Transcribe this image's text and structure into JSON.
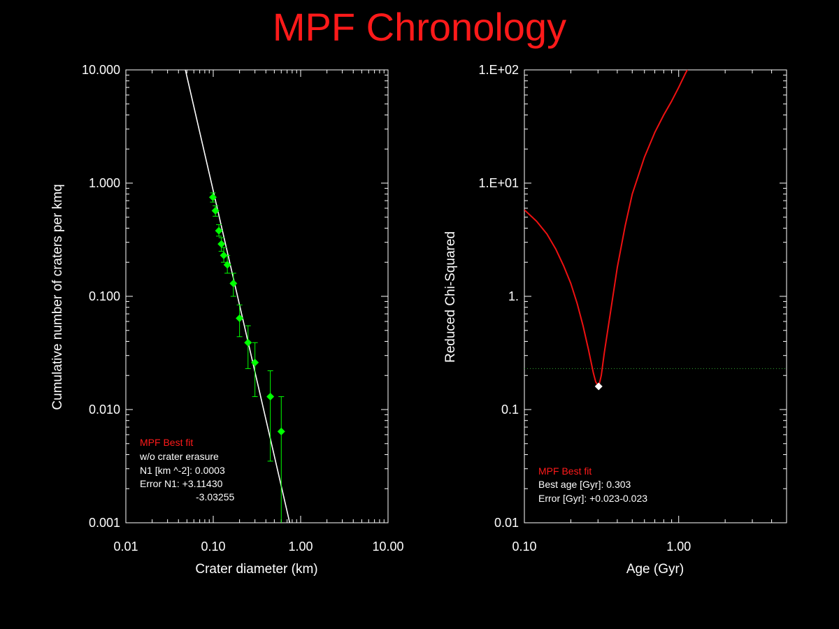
{
  "title": "MPF Chronology",
  "colors": {
    "background": "#000000",
    "title": "#ff1a1a",
    "axis": "#ffffff",
    "fit_line": "#ffffff",
    "data_points": "#00ff00",
    "chi_curve": "#ee1111",
    "threshold": "#33aa33",
    "min_marker": "#ffffff"
  },
  "chart_data": [
    {
      "type": "scatter",
      "xlabel": "Crater diameter (km)",
      "ylabel": "Cumulative number of craters per kmq",
      "xscale": "log",
      "yscale": "log",
      "xlim": [
        0.01,
        10.0
      ],
      "ylim": [
        0.001,
        10.0
      ],
      "xticks": [
        {
          "value": 0.01,
          "label": "0.01"
        },
        {
          "value": 0.1,
          "label": "0.10"
        },
        {
          "value": 1.0,
          "label": "1.00"
        },
        {
          "value": 10.0,
          "label": "10.00"
        }
      ],
      "yticks": [
        {
          "value": 0.001,
          "label": "0.001"
        },
        {
          "value": 0.01,
          "label": "0.010"
        },
        {
          "value": 0.1,
          "label": "0.100"
        },
        {
          "value": 1.0,
          "label": "1.000"
        },
        {
          "value": 10.0,
          "label": "10.000"
        }
      ],
      "fit_line": {
        "x": [
          0.046,
          0.75
        ],
        "y": [
          10.0,
          0.001
        ]
      },
      "points": [
        {
          "x": 0.099,
          "y": 0.75,
          "err_lo": 0.68,
          "err_hi": 0.82
        },
        {
          "x": 0.106,
          "y": 0.57,
          "err_lo": 0.51,
          "err_hi": 0.63
        },
        {
          "x": 0.116,
          "y": 0.38,
          "err_lo": 0.34,
          "err_hi": 0.43
        },
        {
          "x": 0.124,
          "y": 0.29,
          "err_lo": 0.25,
          "err_hi": 0.33
        },
        {
          "x": 0.132,
          "y": 0.23,
          "err_lo": 0.2,
          "err_hi": 0.27
        },
        {
          "x": 0.145,
          "y": 0.19,
          "err_lo": 0.16,
          "err_hi": 0.23
        },
        {
          "x": 0.17,
          "y": 0.13,
          "err_lo": 0.1,
          "err_hi": 0.16
        },
        {
          "x": 0.2,
          "y": 0.064,
          "err_lo": 0.044,
          "err_hi": 0.084
        },
        {
          "x": 0.25,
          "y": 0.039,
          "err_lo": 0.023,
          "err_hi": 0.055
        },
        {
          "x": 0.3,
          "y": 0.026,
          "err_lo": 0.013,
          "err_hi": 0.039
        },
        {
          "x": 0.45,
          "y": 0.013,
          "err_lo": 0.0035,
          "err_hi": 0.022
        },
        {
          "x": 0.6,
          "y": 0.0064,
          "err_lo": 0.0008,
          "err_hi": 0.013
        }
      ],
      "annotation": {
        "title": "MPF Best fit",
        "lines": [
          "w/o crater erasure",
          "N1 [km ^-2]: 0.0003",
          "Error N1: +3.11430",
          "-3.03255"
        ]
      }
    },
    {
      "type": "line",
      "xlabel": "Age (Gyr)",
      "ylabel": "Reduced Chi-Squared",
      "xscale": "log",
      "yscale": "log",
      "xlim": [
        0.1,
        5.0
      ],
      "ylim": [
        0.01,
        100.0
      ],
      "xticks": [
        {
          "value": 0.1,
          "label": "0.10"
        },
        {
          "value": 1.0,
          "label": "1.00"
        }
      ],
      "yticks": [
        {
          "value": 0.01,
          "label": "0.01"
        },
        {
          "value": 0.1,
          "label": "0.1"
        },
        {
          "value": 1.0,
          "label": "1."
        },
        {
          "value": 10.0,
          "label": "1.E+01"
        },
        {
          "value": 100.0,
          "label": "1.E+02"
        }
      ],
      "series": [
        {
          "x": [
            0.1,
            0.12,
            0.14,
            0.16,
            0.18,
            0.2,
            0.22,
            0.24,
            0.26,
            0.28,
            0.29,
            0.303,
            0.315,
            0.33,
            0.36,
            0.4,
            0.45,
            0.5,
            0.6,
            0.7,
            0.8,
            0.9,
            1.0,
            1.1,
            1.2
          ],
          "y": [
            5.8,
            4.6,
            3.55,
            2.6,
            1.85,
            1.3,
            0.86,
            0.55,
            0.34,
            0.21,
            0.175,
            0.16,
            0.2,
            0.32,
            0.7,
            1.8,
            4.2,
            8.0,
            17.0,
            28.0,
            40.0,
            53.0,
            70.0,
            92.0,
            115.0
          ]
        }
      ],
      "threshold": 0.23,
      "minimum": {
        "x": 0.303,
        "y": 0.16
      },
      "annotation": {
        "title": "MPF Best fit",
        "lines": [
          "Best age [Gyr]: 0.303",
          "Error [Gyr]: +0.023-0.023"
        ]
      }
    }
  ]
}
